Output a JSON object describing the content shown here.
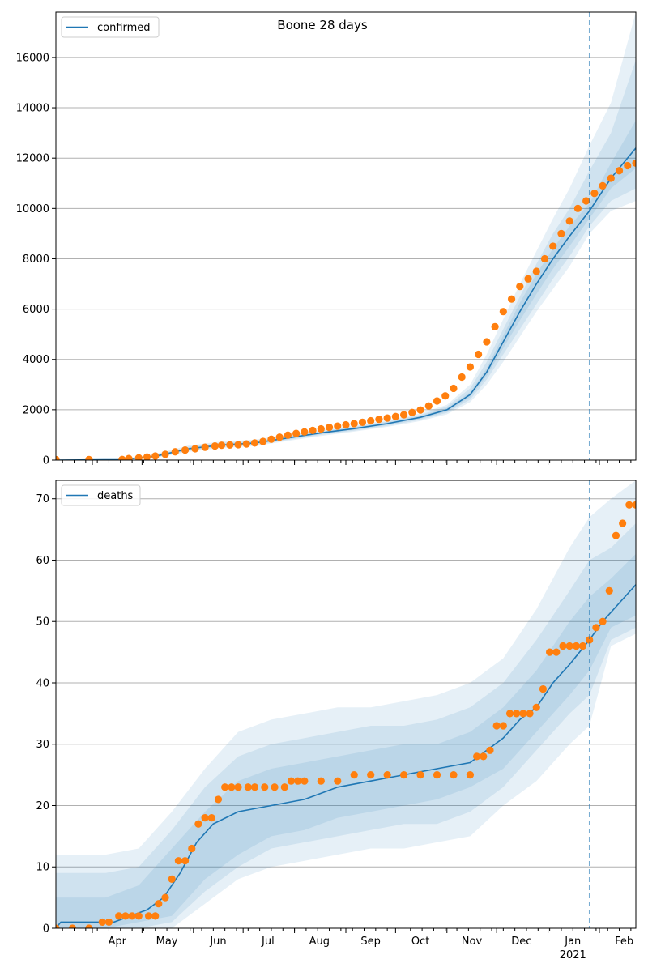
{
  "title": "Boone 28 days",
  "colors": {
    "model": "#1f77b4",
    "observed": "#ff7f0e",
    "band": "#1f77b4",
    "grid": "#b0b0b0",
    "vline": "#1f77b4"
  },
  "x_axis": {
    "month_labels": [
      "Apr",
      "May",
      "Jun",
      "Jul",
      "Aug",
      "Sep",
      "Oct",
      "Nov",
      "Dec",
      "Jan",
      "Feb"
    ],
    "year_label": "2021",
    "domain_days": [
      0,
      350
    ],
    "month_start_days": [
      22,
      52,
      83,
      113,
      144,
      175,
      205,
      236,
      266,
      297,
      328
    ],
    "forecast_start_day": 322
  },
  "chart_data": [
    {
      "type": "line",
      "legend": "confirmed",
      "legend_position": "upper-left",
      "grid": "horizontal",
      "ylim": [
        0,
        17800
      ],
      "yticks": [
        0,
        2000,
        4000,
        6000,
        8000,
        10000,
        12000,
        14000,
        16000
      ],
      "model": {
        "x": [
          0,
          40,
          60,
          80,
          100,
          120,
          140,
          160,
          180,
          200,
          220,
          236,
          250,
          260,
          270,
          280,
          290,
          300,
          310,
          322,
          335,
          350
        ],
        "y": [
          0,
          20,
          150,
          450,
          600,
          680,
          880,
          1080,
          1250,
          1450,
          1700,
          2000,
          2600,
          3500,
          4700,
          5900,
          7000,
          8000,
          8900,
          9900,
          11200,
          12400
        ]
      },
      "bands": [
        {
          "x": [
            0,
            40,
            60,
            80,
            100,
            120,
            140,
            160,
            180,
            200,
            220,
            236,
            250,
            260,
            270,
            280,
            290,
            300,
            310,
            322,
            335,
            350
          ],
          "low": [
            0,
            0,
            90,
            330,
            480,
            560,
            760,
            960,
            1130,
            1320,
            1550,
            1820,
            2300,
            3000,
            3900,
            4900,
            5900,
            6800,
            7700,
            9000,
            9900,
            10300
          ],
          "high": [
            0,
            40,
            240,
            580,
            740,
            810,
            1010,
            1210,
            1380,
            1590,
            1860,
            2200,
            3000,
            4200,
            5600,
            7000,
            8300,
            9600,
            10800,
            12500,
            14200,
            17800
          ]
        },
        {
          "x": [
            0,
            40,
            60,
            80,
            100,
            120,
            140,
            160,
            180,
            200,
            220,
            236,
            250,
            260,
            270,
            280,
            290,
            300,
            310,
            322,
            335,
            350
          ],
          "low": [
            0,
            5,
            110,
            370,
            520,
            600,
            800,
            1000,
            1170,
            1360,
            1600,
            1880,
            2400,
            3200,
            4200,
            5200,
            6200,
            7200,
            8100,
            9300,
            10300,
            10800
          ],
          "high": [
            0,
            35,
            200,
            530,
            690,
            760,
            960,
            1160,
            1330,
            1540,
            1800,
            2130,
            2850,
            3900,
            5200,
            6500,
            7800,
            9000,
            10000,
            11500,
            13000,
            15900
          ]
        },
        {
          "x": [
            0,
            40,
            60,
            80,
            100,
            120,
            140,
            160,
            180,
            200,
            220,
            236,
            250,
            260,
            270,
            280,
            290,
            300,
            310,
            322,
            335,
            350
          ],
          "low": [
            0,
            10,
            125,
            400,
            555,
            635,
            835,
            1035,
            1205,
            1400,
            1645,
            1930,
            2500,
            3350,
            4450,
            5550,
            6600,
            7600,
            8500,
            9600,
            10800,
            11600
          ],
          "high": [
            0,
            30,
            175,
            500,
            645,
            725,
            925,
            1125,
            1295,
            1500,
            1755,
            2070,
            2700,
            3650,
            4950,
            6250,
            7400,
            8400,
            9300,
            10200,
            11800,
            13500
          ]
        }
      ],
      "observed": {
        "x": [
          0,
          20,
          40,
          44,
          50,
          55,
          60,
          66,
          72,
          78,
          84,
          90,
          96,
          100,
          105,
          110,
          115,
          120,
          125,
          130,
          135,
          140,
          145,
          150,
          155,
          160,
          165,
          170,
          175,
          180,
          185,
          190,
          195,
          200,
          205,
          210,
          215,
          220,
          225,
          230,
          235,
          240,
          245,
          250,
          255,
          260,
          265,
          270,
          275,
          280,
          285,
          290,
          295,
          300,
          305,
          310,
          315,
          320,
          325,
          330,
          335,
          340,
          345,
          350
        ],
        "y": [
          20,
          20,
          25,
          60,
          90,
          120,
          160,
          230,
          330,
          400,
          450,
          510,
          560,
          590,
          600,
          610,
          640,
          680,
          740,
          830,
          910,
          990,
          1060,
          1120,
          1180,
          1240,
          1300,
          1350,
          1400,
          1450,
          1500,
          1560,
          1620,
          1670,
          1730,
          1800,
          1890,
          1990,
          2150,
          2350,
          2550,
          2850,
          3300,
          3700,
          4200,
          4700,
          5300,
          5900,
          6400,
          6900,
          7200,
          7500,
          8000,
          8500,
          9000,
          9500,
          10000,
          10300,
          10600,
          10900,
          11200,
          11500,
          11700,
          11800
        ]
      }
    },
    {
      "type": "line",
      "legend": "deaths",
      "legend_position": "upper-left",
      "grid": "horizontal",
      "ylim": [
        0,
        73
      ],
      "yticks": [
        0,
        10,
        20,
        30,
        40,
        50,
        60,
        70
      ],
      "model": {
        "x": [
          0,
          3,
          35,
          45,
          55,
          65,
          75,
          85,
          95,
          110,
          130,
          150,
          170,
          190,
          210,
          230,
          250,
          260,
          270,
          280,
          290,
          300,
          310,
          322,
          330,
          340,
          350
        ],
        "y": [
          0,
          1,
          1,
          2,
          3,
          5,
          9,
          14,
          17,
          19,
          20,
          21,
          23,
          24,
          25,
          26,
          27,
          29,
          31,
          34,
          36,
          40,
          43,
          47,
          50,
          53,
          56
        ]
      },
      "bands": [
        {
          "x": [
            0,
            30,
            50,
            70,
            90,
            110,
            130,
            150,
            170,
            190,
            210,
            230,
            250,
            270,
            290,
            310,
            322,
            335,
            350
          ],
          "low": [
            0,
            0,
            0,
            0,
            4,
            8,
            10,
            11,
            12,
            13,
            13,
            14,
            15,
            20,
            24,
            30,
            33,
            46,
            48
          ],
          "high": [
            12,
            12,
            13,
            19,
            26,
            32,
            34,
            35,
            36,
            36,
            37,
            38,
            40,
            44,
            52,
            62,
            67,
            70,
            73
          ]
        },
        {
          "x": [
            0,
            30,
            50,
            70,
            90,
            110,
            130,
            150,
            170,
            190,
            210,
            230,
            250,
            270,
            290,
            310,
            322,
            335,
            350
          ],
          "low": [
            0,
            0,
            0,
            1,
            6,
            10,
            13,
            14,
            15,
            16,
            17,
            17,
            19,
            23,
            29,
            35,
            38,
            47,
            49
          ],
          "high": [
            9,
            9,
            10,
            16,
            23,
            28,
            30,
            31,
            32,
            33,
            33,
            34,
            36,
            40,
            47,
            55,
            60,
            62,
            66
          ]
        },
        {
          "x": [
            0,
            30,
            50,
            70,
            90,
            110,
            130,
            150,
            170,
            190,
            210,
            230,
            250,
            270,
            290,
            310,
            322,
            335,
            350
          ],
          "low": [
            0,
            0,
            1,
            2,
            8,
            12,
            15,
            16,
            18,
            19,
            20,
            21,
            23,
            26,
            32,
            38,
            42,
            49,
            51
          ],
          "high": [
            5,
            5,
            7,
            13,
            19,
            24,
            26,
            27,
            28,
            29,
            30,
            30,
            32,
            36,
            42,
            50,
            54,
            57,
            61
          ]
        }
      ],
      "observed": {
        "x": [
          0,
          10,
          20,
          28,
          32,
          38,
          42,
          46,
          50,
          56,
          60,
          62,
          66,
          70,
          74,
          78,
          82,
          86,
          90,
          94,
          98,
          102,
          106,
          110,
          116,
          120,
          126,
          132,
          138,
          142,
          146,
          150,
          160,
          170,
          180,
          190,
          200,
          210,
          220,
          230,
          240,
          250,
          254,
          258,
          262,
          266,
          270,
          274,
          278,
          282,
          286,
          290,
          294,
          298,
          302,
          306,
          310,
          314,
          318,
          322,
          326,
          330,
          334,
          338,
          342,
          346,
          350
        ],
        "y": [
          0,
          0,
          0,
          1,
          1,
          2,
          2,
          2,
          2,
          2,
          2,
          4,
          5,
          8,
          11,
          11,
          13,
          17,
          18,
          18,
          21,
          23,
          23,
          23,
          23,
          23,
          23,
          23,
          23,
          24,
          24,
          24,
          24,
          24,
          25,
          25,
          25,
          25,
          25,
          25,
          25,
          25,
          28,
          28,
          29,
          33,
          33,
          35,
          35,
          35,
          35,
          36,
          39,
          45,
          45,
          46,
          46,
          46,
          46,
          47,
          49,
          50,
          55,
          64,
          66,
          69,
          69
        ]
      }
    }
  ]
}
